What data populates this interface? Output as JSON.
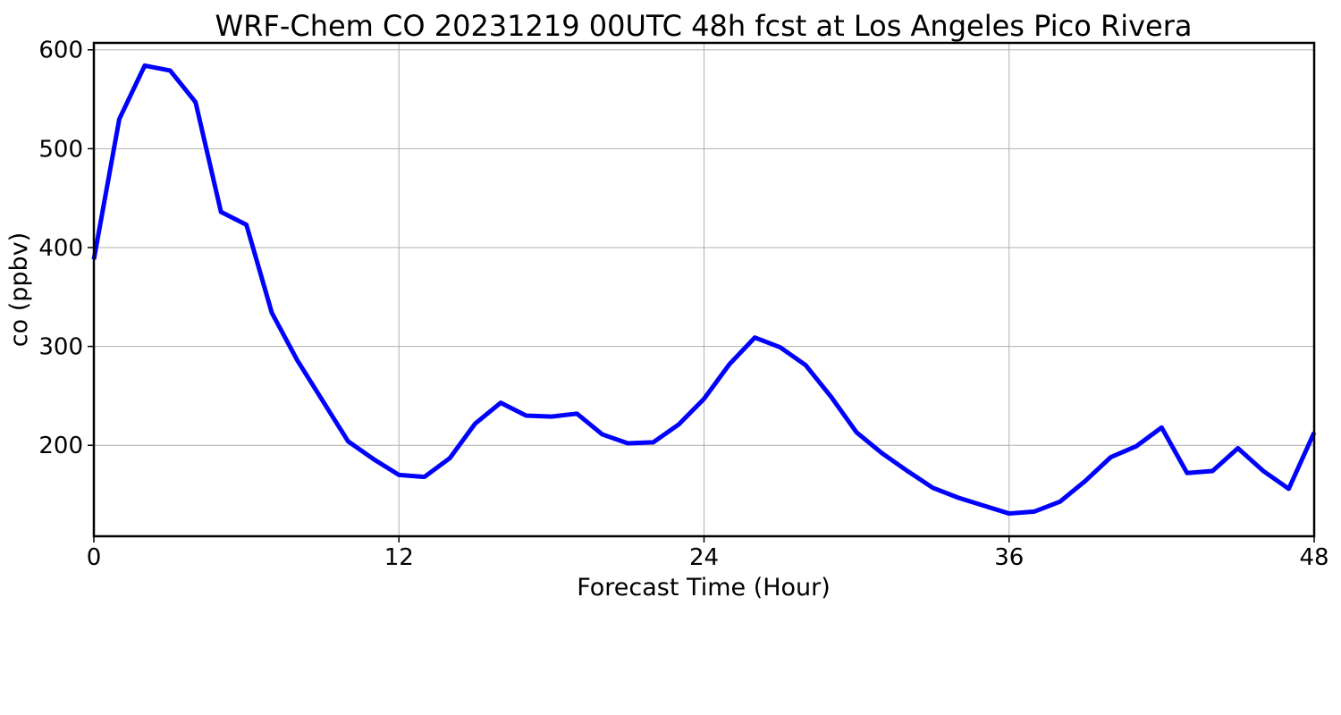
{
  "chart_data": {
    "type": "line",
    "title": "WRF-Chem CO  20231219 00UTC 48h fcst at Los Angeles Pico Rivera",
    "xlabel": "Forecast Time (Hour)",
    "ylabel": "co  (ppbv)",
    "xlim": [
      0,
      48
    ],
    "ylim": [
      108,
      607
    ],
    "xticks": [
      0,
      12,
      24,
      36,
      48
    ],
    "yticks": [
      200,
      300,
      400,
      500,
      600
    ],
    "grid": true,
    "legend": "none",
    "series": [
      {
        "color": "#0000ff",
        "x": [
          0,
          1,
          2,
          3,
          4,
          5,
          6,
          7,
          8,
          9,
          10,
          11,
          12,
          13,
          14,
          15,
          16,
          17,
          18,
          19,
          20,
          21,
          22,
          23,
          24,
          25,
          26,
          27,
          28,
          29,
          30,
          31,
          32,
          33,
          34,
          35,
          36,
          37,
          38,
          39,
          40,
          41,
          42,
          43,
          44,
          45,
          46,
          47,
          48
        ],
        "y": [
          388,
          530,
          584,
          579,
          547,
          436,
          423,
          334,
          286,
          245,
          204,
          186,
          170,
          168,
          187,
          222,
          243,
          230,
          229,
          232,
          211,
          202,
          203,
          221,
          247,
          282,
          309,
          299,
          281,
          249,
          213,
          192,
          174,
          157,
          147,
          139,
          131,
          133,
          143,
          164,
          188,
          199,
          218,
          172,
          174,
          197,
          174,
          156,
          213
        ]
      }
    ]
  }
}
